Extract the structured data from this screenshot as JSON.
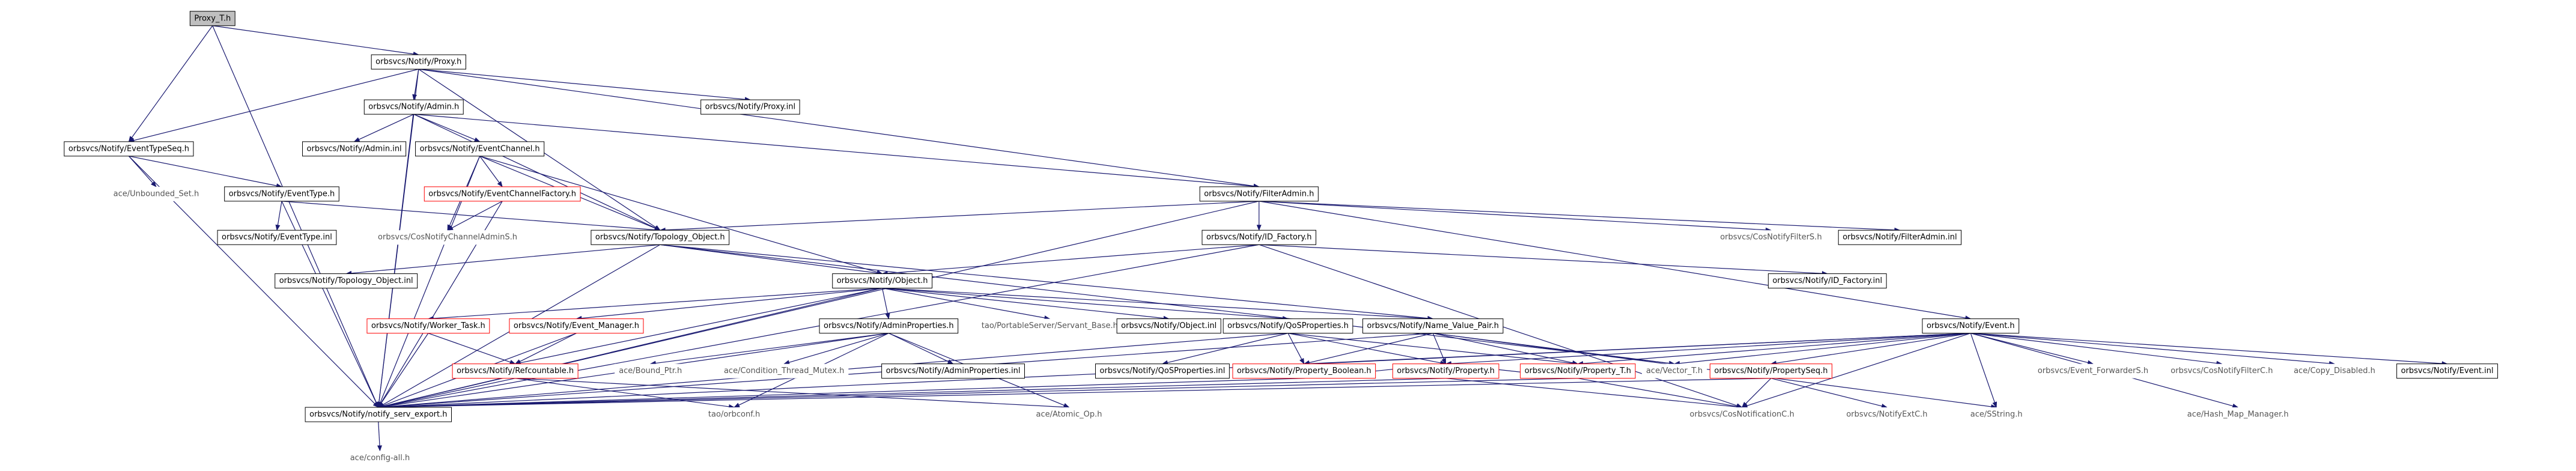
{
  "graph": {
    "nodes": [
      {
        "label": "Proxy_T.h"
      },
      {
        "label": "orbsvcs/Notify/Proxy.h"
      },
      {
        "label": "orbsvcs/Notify/Admin.h"
      },
      {
        "label": "orbsvcs/Notify/Proxy.inl"
      },
      {
        "label": "orbsvcs/Notify/EventTypeSeq.h"
      },
      {
        "label": "orbsvcs/Notify/Admin.inl"
      },
      {
        "label": "orbsvcs/Notify/EventChannel.h"
      },
      {
        "label": "orbsvcs/Notify/FilterAdmin.h"
      },
      {
        "label": "ace/Unbounded_Set.h"
      },
      {
        "label": "orbsvcs/Notify/EventType.h"
      },
      {
        "label": "orbsvcs/Notify/EventChannelFactory.h"
      },
      {
        "label": "orbsvcs/Notify/EventType.inl"
      },
      {
        "label": "orbsvcs/CosNotifyChannelAdminS.h"
      },
      {
        "label": "orbsvcs/Notify/Topology_Object.h"
      },
      {
        "label": "orbsvcs/Notify/ID_Factory.h"
      },
      {
        "label": "orbsvcs/CosNotifyFilterS.h"
      },
      {
        "label": "orbsvcs/Notify/FilterAdmin.inl"
      },
      {
        "label": "orbsvcs/Notify/Topology_Object.inl"
      },
      {
        "label": "orbsvcs/Notify/Object.h"
      },
      {
        "label": "orbsvcs/Notify/ID_Factory.inl"
      },
      {
        "label": "orbsvcs/Notify/Event.h"
      },
      {
        "label": "orbsvcs/Notify/Worker_Task.h"
      },
      {
        "label": "orbsvcs/Notify/Event_Manager.h"
      },
      {
        "label": "orbsvcs/Notify/AdminProperties.h"
      },
      {
        "label": "tao/PortableServer/Servant_Base.h"
      },
      {
        "label": "orbsvcs/Notify/Object.inl"
      },
      {
        "label": "orbsvcs/Notify/QoSProperties.h"
      },
      {
        "label": "orbsvcs/Notify/Name_Value_Pair.h"
      },
      {
        "label": "orbsvcs/Notify/Refcountable.h"
      },
      {
        "label": "ace/Bound_Ptr.h"
      },
      {
        "label": "ace/Condition_Thread_Mutex.h"
      },
      {
        "label": "orbsvcs/Notify/AdminProperties.inl"
      },
      {
        "label": "orbsvcs/Notify/QoSProperties.inl"
      },
      {
        "label": "orbsvcs/Notify/Property_Boolean.h"
      },
      {
        "label": "orbsvcs/Notify/Property.h"
      },
      {
        "label": "orbsvcs/Notify/Property_T.h"
      },
      {
        "label": "ace/Vector_T.h"
      },
      {
        "label": "orbsvcs/Notify/PropertySeq.h"
      },
      {
        "label": "orbsvcs/Event_ForwarderS.h"
      },
      {
        "label": "orbsvcs/CosNotifyFilterC.h"
      },
      {
        "label": "ace/Copy_Disabled.h"
      },
      {
        "label": "orbsvcs/Notify/Event.inl"
      },
      {
        "label": "orbsvcs/Notify/notify_serv_export.h"
      },
      {
        "label": "tao/orbconf.h"
      },
      {
        "label": "ace/Atomic_Op.h"
      },
      {
        "label": "orbsvcs/CosNotificationC.h"
      },
      {
        "label": "orbsvcs/NotifyExtC.h"
      },
      {
        "label": "ace/SString.h"
      },
      {
        "label": "ace/Hash_Map_Manager.h"
      },
      {
        "label": "ace/config-all.h"
      }
    ]
  }
}
